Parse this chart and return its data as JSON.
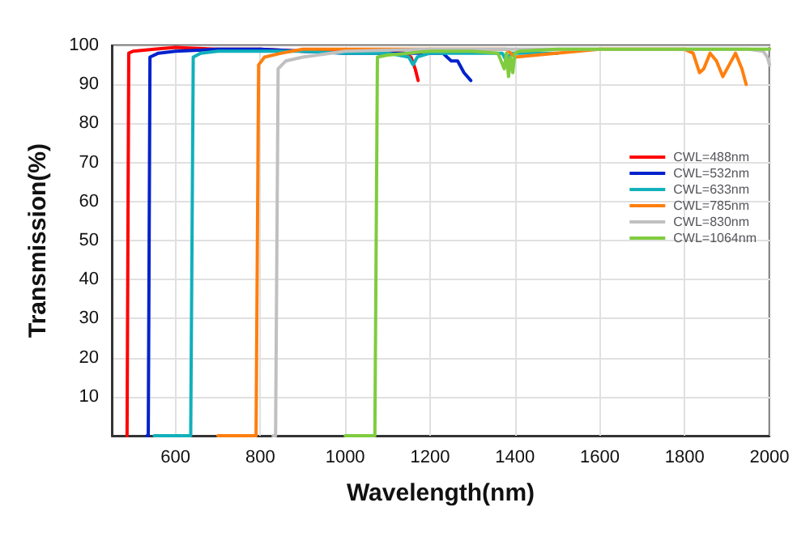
{
  "chart_data": {
    "type": "line",
    "xlabel": "Wavelength(nm)",
    "ylabel": "Transmission(%)",
    "xlim": [
      450,
      2000
    ],
    "ylim": [
      0,
      100
    ],
    "xticks": [
      600,
      800,
      1000,
      1200,
      1400,
      1600,
      1800,
      2000
    ],
    "yticks": [
      10,
      20,
      30,
      40,
      50,
      60,
      70,
      80,
      90,
      100
    ],
    "grid": true,
    "legend": "right",
    "marker": "none",
    "line_style": "solid",
    "series": [
      {
        "name": "CWL=488nm",
        "color": "#ff0000",
        "x": [
          486,
          488,
          490,
          500,
          550,
          600,
          700,
          800,
          900,
          1000,
          1100,
          1140,
          1155,
          1165,
          1172
        ],
        "values": [
          0,
          0,
          98,
          98.5,
          99,
          99.5,
          99,
          99,
          98.5,
          98.5,
          98.5,
          98,
          97,
          94,
          91
        ]
      },
      {
        "name": "CWL=532nm",
        "color": "#0022cc",
        "x": [
          533,
          536,
          540,
          560,
          600,
          700,
          800,
          900,
          1000,
          1100,
          1200,
          1230,
          1250,
          1265,
          1280,
          1296
        ],
        "values": [
          0,
          0,
          97,
          98,
          98.5,
          99,
          99,
          98.5,
          98,
          98,
          98,
          98,
          96,
          96,
          93,
          91
        ]
      },
      {
        "name": "CWL=633nm",
        "color": "#11b0bb",
        "x": [
          550,
          636,
          638,
          642,
          660,
          700,
          800,
          900,
          1000,
          1100,
          1150,
          1160,
          1170,
          1200,
          1300,
          1370,
          1380,
          1390,
          1400,
          1450,
          1500
        ],
        "values": [
          0,
          0,
          0,
          97,
          98,
          98.5,
          98.5,
          98.5,
          98,
          98,
          97,
          95,
          97,
          98,
          98,
          98,
          96,
          98,
          98,
          98,
          98
        ]
      },
      {
        "name": "CWL=785nm",
        "color": "#ff7f0e",
        "x": [
          700,
          790,
          792,
          796,
          810,
          850,
          900,
          1000,
          1200,
          1380,
          1400,
          1600,
          1800,
          1820,
          1835,
          1845,
          1860,
          1875,
          1890,
          1905,
          1920,
          1935,
          1945
        ],
        "values": [
          0,
          0,
          0,
          95,
          97,
          98,
          99,
          99,
          99,
          99,
          97,
          99,
          99,
          98,
          93,
          94,
          98,
          96,
          92,
          95,
          98,
          94,
          90
        ]
      },
      {
        "name": "CWL=830nm",
        "color": "#c0c0c0",
        "x": [
          830,
          836,
          838,
          842,
          860,
          900,
          1000,
          1200,
          1400,
          1600,
          1800,
          1950,
          1985,
          1995,
          2000
        ],
        "values": [
          0,
          0,
          0,
          94,
          96,
          97,
          98.5,
          99,
          99,
          99,
          99,
          99,
          98.5,
          97,
          95
        ]
      },
      {
        "name": "CWL=1064nm",
        "color": "#7fcc3f",
        "x": [
          1000,
          1070,
          1072,
          1076,
          1100,
          1150,
          1200,
          1300,
          1360,
          1375,
          1380,
          1385,
          1390,
          1395,
          1400,
          1410,
          1500,
          1700,
          1900,
          2000
        ],
        "values": [
          0,
          0,
          0,
          97,
          97.5,
          98,
          98.5,
          98.5,
          98,
          94,
          98,
          92,
          97,
          93,
          98,
          98.5,
          99,
          99,
          99,
          99
        ]
      }
    ]
  }
}
